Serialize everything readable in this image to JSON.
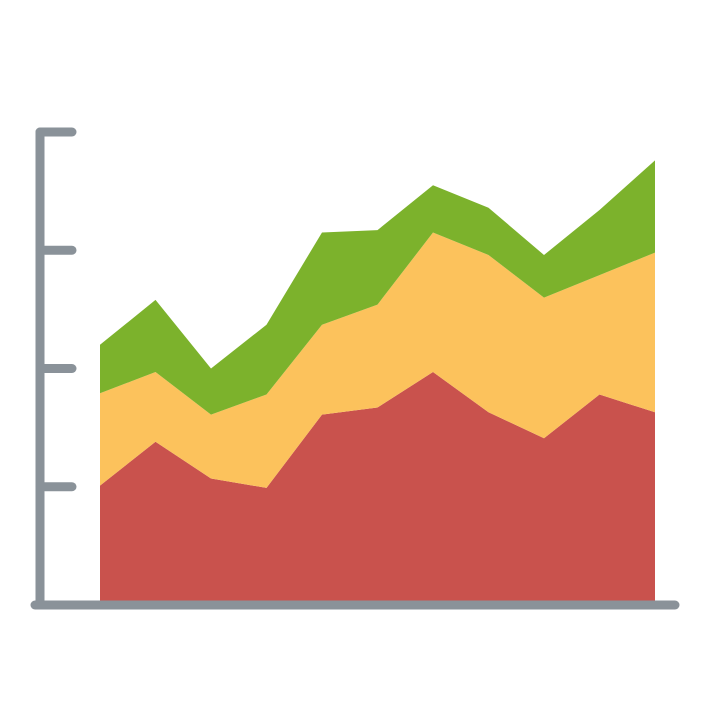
{
  "chart_data": {
    "type": "stacked-area",
    "x": [
      0,
      1,
      2,
      3,
      4,
      5,
      6,
      7,
      8,
      9,
      10
    ],
    "xlim": [
      0,
      10
    ],
    "ylim": [
      0,
      4
    ],
    "yticks": [
      1,
      2,
      3,
      4
    ],
    "series": [
      {
        "color": "#c9524d",
        "values": [
          1.01,
          1.38,
          1.07,
          0.99,
          1.61,
          1.67,
          1.97,
          1.63,
          1.41,
          1.78,
          1.63
        ]
      },
      {
        "color": "#fcc25c",
        "values": [
          0.78,
          0.59,
          0.54,
          0.79,
          0.76,
          0.87,
          1.18,
          1.33,
          1.19,
          1.01,
          1.35
        ]
      },
      {
        "color": "#7cb22c",
        "values": [
          0.41,
          0.61,
          0.39,
          0.59,
          0.78,
          0.63,
          0.4,
          0.4,
          0.36,
          0.55,
          0.78
        ]
      }
    ]
  }
}
